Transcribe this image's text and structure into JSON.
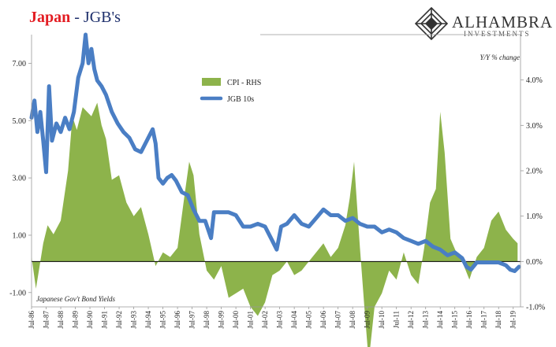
{
  "title": {
    "part1": "Japan",
    "sep": " - ",
    "part2": "JGB's"
  },
  "logo": {
    "name": "ALHAMBRA",
    "sub": "INVESTMENTS"
  },
  "annotations": {
    "right_axis_label": "Y/Y % change",
    "bottom_left": "Japanese Gov't Bond Yields"
  },
  "colors": {
    "cpi": "#8db34b",
    "jgb": "#4a7ec4",
    "title_red": "#e31d23",
    "title_navy": "#1c2e6b"
  },
  "chart_data": {
    "type": "area+line",
    "legend_position": "upper-center",
    "x_ticks": [
      "Jul-86",
      "Jul-87",
      "Jul-88",
      "Jul-89",
      "Jul-90",
      "Jul-91",
      "Jul-92",
      "Jul-93",
      "Jul-94",
      "Jul-95",
      "Jul-96",
      "Jul-97",
      "Jul-98",
      "Jul-99",
      "Jul-00",
      "Jul-01",
      "Jul-02",
      "Jul-03",
      "Jul-04",
      "Jul-05",
      "Jul-06",
      "Jul-07",
      "Jul-08",
      "Jul-09",
      "Jul-10",
      "Jul-11",
      "Jul-12",
      "Jul-13",
      "Jul-14",
      "Jul-15",
      "Jul-16",
      "Jul-17",
      "Jul-18",
      "Jul-19"
    ],
    "y_left": {
      "ticks": [
        "-1.00",
        "1.00",
        "3.00",
        "5.00",
        "7.00"
      ],
      "range": [
        -1.5,
        8.0
      ]
    },
    "y_right": {
      "ticks": [
        "-1.0%",
        "0.0%",
        "1.0%",
        "2.0%",
        "3.0%",
        "4.0%"
      ],
      "range": [
        -1.0,
        5.0
      ]
    },
    "series": [
      {
        "name": "CPI - RHS",
        "type": "area",
        "axis": "right",
        "x": [
          1986.5,
          1986.8,
          1987.0,
          1987.3,
          1987.6,
          1988.0,
          1988.5,
          1989.0,
          1989.3,
          1989.6,
          1990.0,
          1990.3,
          1990.6,
          1991.0,
          1991.3,
          1991.6,
          1992.0,
          1992.5,
          1993.0,
          1993.5,
          1994.0,
          1994.5,
          1995.0,
          1995.5,
          1996.0,
          1996.5,
          1997.0,
          1997.3,
          1997.6,
          1998.0,
          1998.5,
          1999.0,
          1999.5,
          2000.0,
          2000.5,
          2001.0,
          2001.5,
          2002.0,
          2002.5,
          2003.0,
          2003.5,
          2004.0,
          2004.5,
          2005.0,
          2005.5,
          2006.0,
          2006.5,
          2007.0,
          2007.5,
          2008.0,
          2008.3,
          2008.6,
          2009.0,
          2009.3,
          2009.6,
          2010.0,
          2010.5,
          2011.0,
          2011.5,
          2012.0,
          2012.5,
          2013.0,
          2013.4,
          2013.8,
          2014.2,
          2014.5,
          2014.8,
          2015.2,
          2015.6,
          2016.0,
          2016.5,
          2017.0,
          2017.5,
          2018.0,
          2018.5,
          2019.0,
          2019.5,
          2019.8
        ],
        "values": [
          0.1,
          -0.6,
          -0.2,
          0.4,
          0.8,
          0.6,
          0.9,
          2.0,
          3.2,
          2.9,
          3.4,
          3.3,
          3.2,
          3.5,
          3.0,
          2.7,
          1.8,
          1.9,
          1.3,
          1.0,
          1.2,
          0.6,
          -0.1,
          0.2,
          0.1,
          0.3,
          1.5,
          2.2,
          1.9,
          0.6,
          -0.2,
          -0.4,
          -0.1,
          -0.8,
          -0.7,
          -0.6,
          -1.0,
          -1.2,
          -0.9,
          -0.3,
          -0.2,
          0.0,
          -0.3,
          -0.2,
          0.0,
          0.2,
          0.4,
          0.1,
          0.3,
          0.8,
          1.4,
          2.2,
          0.3,
          -1.0,
          -2.2,
          -1.0,
          -0.7,
          -0.2,
          -0.4,
          0.2,
          -0.3,
          -0.5,
          0.3,
          1.3,
          1.6,
          3.3,
          2.4,
          0.5,
          0.2,
          0.0,
          -0.4,
          0.1,
          0.3,
          0.9,
          1.1,
          0.7,
          0.5,
          0.4
        ]
      },
      {
        "name": "JGB 10s",
        "type": "line",
        "axis": "left",
        "x": [
          1986.5,
          1986.7,
          1986.9,
          1987.1,
          1987.3,
          1987.5,
          1987.7,
          1987.9,
          1988.2,
          1988.5,
          1988.8,
          1989.1,
          1989.4,
          1989.7,
          1990.0,
          1990.2,
          1990.4,
          1990.6,
          1990.8,
          1991.0,
          1991.3,
          1991.6,
          1992.0,
          1992.4,
          1992.8,
          1993.2,
          1993.6,
          1994.0,
          1994.4,
          1994.8,
          1995.0,
          1995.2,
          1995.5,
          1995.8,
          1996.1,
          1996.4,
          1996.8,
          1997.2,
          1997.6,
          1998.0,
          1998.4,
          1998.8,
          1999.0,
          1999.3,
          1999.6,
          2000.0,
          2000.5,
          2001.0,
          2001.5,
          2002.0,
          2002.5,
          2003.0,
          2003.3,
          2003.6,
          2004.0,
          2004.5,
          2005.0,
          2005.5,
          2006.0,
          2006.5,
          2007.0,
          2007.5,
          2008.0,
          2008.5,
          2009.0,
          2009.5,
          2010.0,
          2010.5,
          2011.0,
          2011.5,
          2012.0,
          2012.5,
          2013.0,
          2013.5,
          2014.0,
          2014.5,
          2015.0,
          2015.5,
          2016.0,
          2016.3,
          2016.6,
          2017.0,
          2017.5,
          2018.0,
          2018.5,
          2019.0,
          2019.3,
          2019.6,
          2019.9
        ],
        "values": [
          5.1,
          5.7,
          4.6,
          5.3,
          4.3,
          3.2,
          6.2,
          4.3,
          4.9,
          4.6,
          5.1,
          4.7,
          5.3,
          6.5,
          7.0,
          8.0,
          7.0,
          7.5,
          6.8,
          6.4,
          6.2,
          5.9,
          5.3,
          4.9,
          4.6,
          4.4,
          4.0,
          3.9,
          4.3,
          4.7,
          4.2,
          3.0,
          2.8,
          3.0,
          3.1,
          2.9,
          2.5,
          2.4,
          1.9,
          1.5,
          1.5,
          0.9,
          1.8,
          1.8,
          1.8,
          1.8,
          1.7,
          1.3,
          1.3,
          1.4,
          1.3,
          0.8,
          0.5,
          1.3,
          1.4,
          1.7,
          1.4,
          1.3,
          1.6,
          1.9,
          1.7,
          1.7,
          1.5,
          1.6,
          1.4,
          1.3,
          1.3,
          1.1,
          1.2,
          1.1,
          0.9,
          0.8,
          0.7,
          0.8,
          0.6,
          0.5,
          0.3,
          0.4,
          0.2,
          -0.1,
          -0.2,
          0.05,
          0.05,
          0.05,
          0.05,
          -0.05,
          -0.2,
          -0.25,
          -0.1
        ]
      }
    ]
  }
}
